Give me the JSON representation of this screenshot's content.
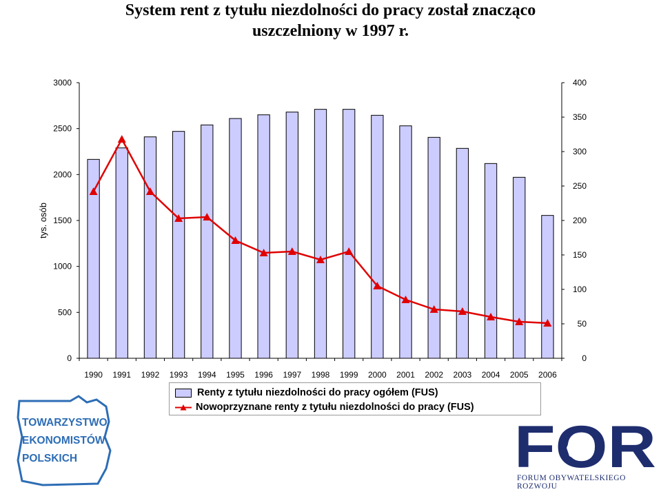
{
  "title_line1": "System rent z tytułu niezdolności do pracy został znacząco",
  "title_line2": "uszczelniony w 1997 r.",
  "chart_data": {
    "type": "bar",
    "categories": [
      "1990",
      "1991",
      "1992",
      "1993",
      "1994",
      "1995",
      "1996",
      "1997",
      "1998",
      "1999",
      "2000",
      "2001",
      "2002",
      "2003",
      "2004",
      "2005",
      "2006"
    ],
    "ylabel": "tys. osób",
    "ylim": [
      0,
      3000
    ],
    "y_ticks": [
      "0",
      "500",
      "1000",
      "1500",
      "2000",
      "2500",
      "3000"
    ],
    "y2lim": [
      0,
      400
    ],
    "y2_ticks": [
      "0",
      "50",
      "100",
      "150",
      "200",
      "250",
      "300",
      "350",
      "400"
    ],
    "series": [
      {
        "name": "Renty z tytułu niezdolności do pracy ogółem (FUS)",
        "type": "bar",
        "axis": "left",
        "color": "#ccccff",
        "values": [
          2165,
          2290,
          2410,
          2470,
          2540,
          2610,
          2650,
          2680,
          2710,
          2710,
          2645,
          2530,
          2405,
          2285,
          2120,
          1970,
          1555
        ]
      },
      {
        "name": "Nowoprzyznane renty z tytułu niezdolności do pracy (FUS)",
        "type": "line",
        "axis": "right",
        "color": "#e00000",
        "marker": "triangle",
        "values": [
          242,
          318,
          242,
          203,
          205,
          171,
          153,
          155,
          143,
          155,
          105,
          85,
          71,
          68,
          60,
          53,
          51
        ]
      }
    ],
    "legend_position": "bottom",
    "grid": false
  },
  "logos": {
    "left_text": [
      "TOWARZYSTWO",
      "EKONOMISTÓW",
      "POLSKICH"
    ],
    "left_color": "#2d6db5",
    "right_text": "FOR",
    "right_subtitle": "FORUM OBYWATELSKIEGO ROZWOJU",
    "right_color": "#1e2d6e",
    "right_map_color": "#ffffff"
  }
}
